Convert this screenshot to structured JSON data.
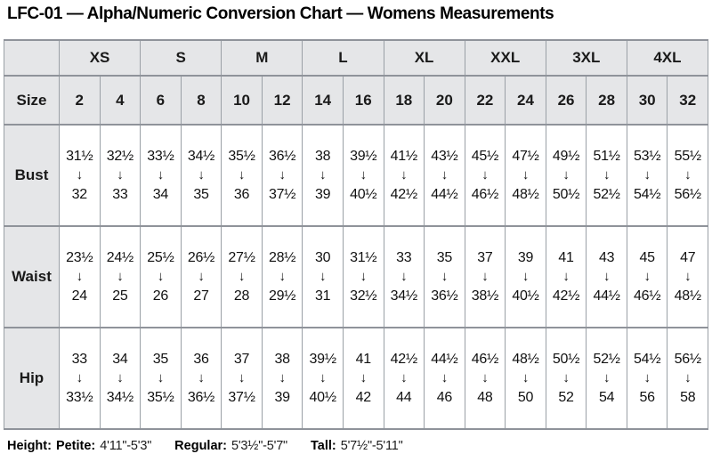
{
  "title": "LFC-01 — Alpha/Numeric Conversion Chart — Womens Measurements",
  "colors": {
    "header_background": "#e5e6e8",
    "grid_border": "#9aa0a6",
    "text": "#000000",
    "cell_background": "#ffffff"
  },
  "table": {
    "corner_label": "",
    "groups": [
      "XS",
      "S",
      "M",
      "L",
      "XL",
      "XXL",
      "3XL",
      "4XL"
    ],
    "size_label": "Size",
    "sizes": [
      "2",
      "4",
      "6",
      "8",
      "10",
      "12",
      "14",
      "16",
      "18",
      "20",
      "22",
      "24",
      "26",
      "28",
      "30",
      "32"
    ],
    "arrow": "↓",
    "rows": [
      {
        "label": "Bust",
        "cells": [
          {
            "from": "31½",
            "to": "32"
          },
          {
            "from": "32½",
            "to": "33"
          },
          {
            "from": "33½",
            "to": "34"
          },
          {
            "from": "34½",
            "to": "35"
          },
          {
            "from": "35½",
            "to": "36"
          },
          {
            "from": "36½",
            "to": "37½"
          },
          {
            "from": "38",
            "to": "39"
          },
          {
            "from": "39½",
            "to": "40½"
          },
          {
            "from": "41½",
            "to": "42½"
          },
          {
            "from": "43½",
            "to": "44½"
          },
          {
            "from": "45½",
            "to": "46½"
          },
          {
            "from": "47½",
            "to": "48½"
          },
          {
            "from": "49½",
            "to": "50½"
          },
          {
            "from": "51½",
            "to": "52½"
          },
          {
            "from": "53½",
            "to": "54½"
          },
          {
            "from": "55½",
            "to": "56½"
          }
        ]
      },
      {
        "label": "Waist",
        "cells": [
          {
            "from": "23½",
            "to": "24"
          },
          {
            "from": "24½",
            "to": "25"
          },
          {
            "from": "25½",
            "to": "26"
          },
          {
            "from": "26½",
            "to": "27"
          },
          {
            "from": "27½",
            "to": "28"
          },
          {
            "from": "28½",
            "to": "29½"
          },
          {
            "from": "30",
            "to": "31"
          },
          {
            "from": "31½",
            "to": "32½"
          },
          {
            "from": "33",
            "to": "34½"
          },
          {
            "from": "35",
            "to": "36½"
          },
          {
            "from": "37",
            "to": "38½"
          },
          {
            "from": "39",
            "to": "40½"
          },
          {
            "from": "41",
            "to": "42½"
          },
          {
            "from": "43",
            "to": "44½"
          },
          {
            "from": "45",
            "to": "46½"
          },
          {
            "from": "47",
            "to": "48½"
          }
        ]
      },
      {
        "label": "Hip",
        "cells": [
          {
            "from": "33",
            "to": "33½"
          },
          {
            "from": "34",
            "to": "34½"
          },
          {
            "from": "35",
            "to": "35½"
          },
          {
            "from": "36",
            "to": "36½"
          },
          {
            "from": "37",
            "to": "37½"
          },
          {
            "from": "38",
            "to": "39"
          },
          {
            "from": "39½",
            "to": "40½"
          },
          {
            "from": "41",
            "to": "42"
          },
          {
            "from": "42½",
            "to": "44"
          },
          {
            "from": "44½",
            "to": "46"
          },
          {
            "from": "46½",
            "to": "48"
          },
          {
            "from": "48½",
            "to": "50"
          },
          {
            "from": "50½",
            "to": "52"
          },
          {
            "from": "52½",
            "to": "54"
          },
          {
            "from": "54½",
            "to": "56"
          },
          {
            "from": "56½",
            "to": "58"
          }
        ]
      }
    ]
  },
  "footer": {
    "label": "Height:",
    "entries": [
      {
        "name": "Petite:",
        "range": "4'11\"-5'3\""
      },
      {
        "name": "Regular:",
        "range": "5'3½\"-5'7\""
      },
      {
        "name": "Tall:",
        "range": "5'7½\"-5'11\""
      }
    ]
  }
}
